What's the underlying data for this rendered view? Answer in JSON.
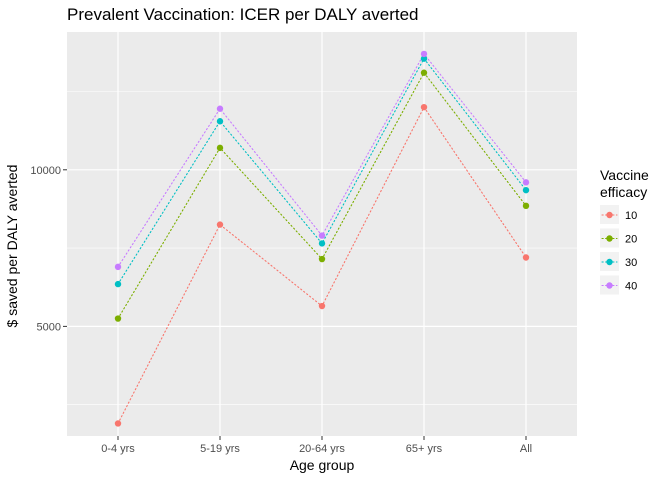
{
  "chart_data": {
    "type": "line",
    "title": "Prevalent Vaccination: ICER per DALY averted",
    "xlabel": "Age group",
    "ylabel": "$ saved per DALY averted",
    "categories": [
      "0-4 yrs",
      "5-19 yrs",
      "20-64 yrs",
      "65+ yrs",
      "All"
    ],
    "ylim": [
      1500,
      14400
    ],
    "yticks": [
      5000,
      10000
    ],
    "yticks_labels": [
      "5000",
      "10000"
    ],
    "grid": true,
    "line_style": "dotted",
    "legend": {
      "title_lines": [
        "Vaccine",
        "efficacy"
      ],
      "position": "right"
    },
    "series": [
      {
        "name": "10",
        "color": "#F8766D",
        "values": [
          1900,
          8250,
          5650,
          12000,
          7200
        ]
      },
      {
        "name": "20",
        "color": "#7CAE00",
        "values": [
          5250,
          10700,
          7150,
          13100,
          8850
        ]
      },
      {
        "name": "30",
        "color": "#00BFC4",
        "values": [
          6350,
          11550,
          7650,
          13550,
          9350
        ]
      },
      {
        "name": "40",
        "color": "#C77CFF",
        "values": [
          6900,
          11950,
          7900,
          13700,
          9600
        ]
      }
    ]
  }
}
